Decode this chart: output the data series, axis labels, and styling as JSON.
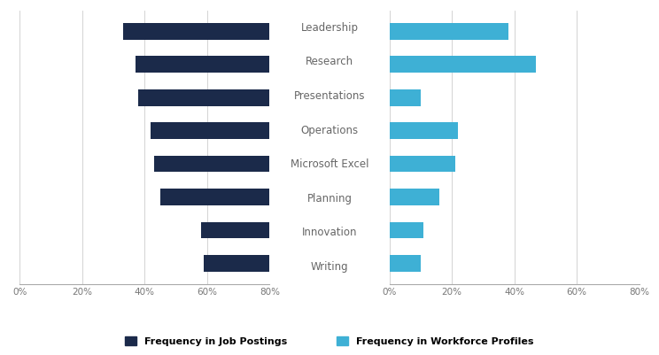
{
  "categories": [
    "Leadership",
    "Research",
    "Presentations",
    "Operations",
    "Microsoft Excel",
    "Planning",
    "Innovation",
    "Writing"
  ],
  "job_postings": [
    47,
    43,
    42,
    38,
    37,
    35,
    22,
    21
  ],
  "workforce_profiles": [
    38,
    47,
    10,
    22,
    21,
    16,
    11,
    10
  ],
  "job_color": "#1B2A4A",
  "workforce_color": "#3EB0D5",
  "background_color": "#FFFFFF",
  "grid_color": "#CCCCCC",
  "legend_job": "Frequency in Job Postings",
  "legend_workforce": "Frequency in Workforce Profiles",
  "xlim": 80,
  "xticks": [
    0,
    20,
    40,
    60,
    80
  ]
}
